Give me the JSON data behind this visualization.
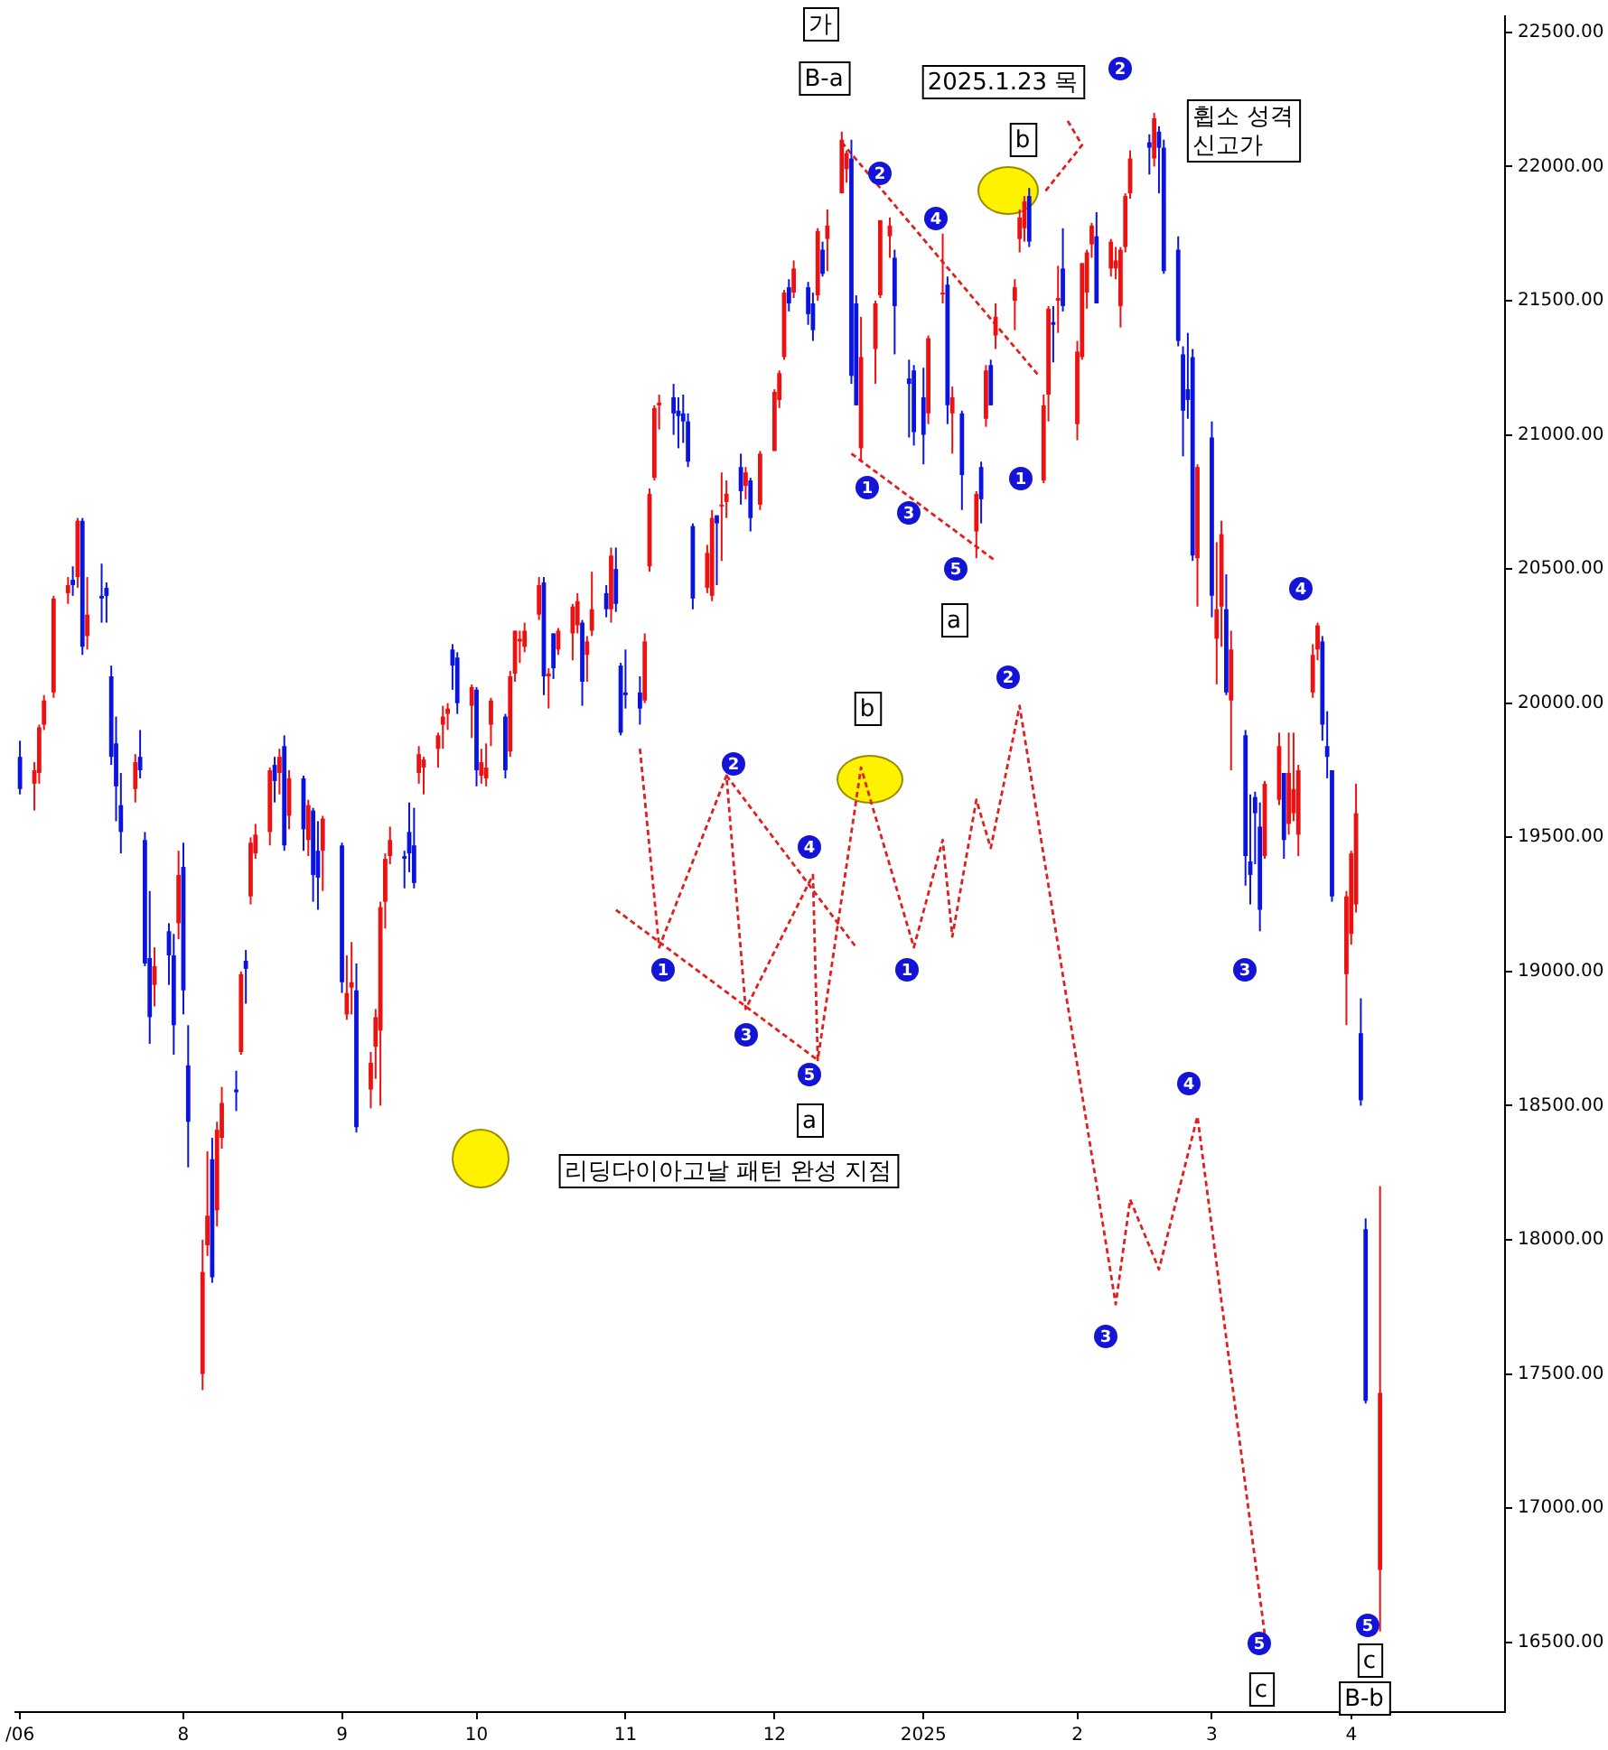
{
  "chart_data": {
    "type": "candlestick",
    "x": [
      "2024-06-28",
      "2024-07-01",
      "2024-07-02",
      "2024-07-03",
      "2024-07-05",
      "2024-07-08",
      "2024-07-09",
      "2024-07-10",
      "2024-07-11",
      "2024-07-12",
      "2024-07-15",
      "2024-07-16",
      "2024-07-17",
      "2024-07-18",
      "2024-07-19",
      "2024-07-22",
      "2024-07-23",
      "2024-07-24",
      "2024-07-25",
      "2024-07-26",
      "2024-07-29",
      "2024-07-30",
      "2024-07-31",
      "2024-08-01",
      "2024-08-02",
      "2024-08-05",
      "2024-08-06",
      "2024-08-07",
      "2024-08-08",
      "2024-08-09",
      "2024-08-12",
      "2024-08-13",
      "2024-08-14",
      "2024-08-15",
      "2024-08-16",
      "2024-08-19",
      "2024-08-20",
      "2024-08-21",
      "2024-08-22",
      "2024-08-23",
      "2024-08-26",
      "2024-08-27",
      "2024-08-28",
      "2024-08-29",
      "2024-08-30",
      "2024-09-03",
      "2024-09-04",
      "2024-09-05",
      "2024-09-06",
      "2024-09-09",
      "2024-09-10",
      "2024-09-11",
      "2024-09-12",
      "2024-09-13",
      "2024-09-16",
      "2024-09-17",
      "2024-09-18",
      "2024-09-19",
      "2024-09-20",
      "2024-09-23",
      "2024-09-24",
      "2024-09-25",
      "2024-09-26",
      "2024-09-27",
      "2024-09-30",
      "2024-10-01",
      "2024-10-02",
      "2024-10-03",
      "2024-10-04",
      "2024-10-07",
      "2024-10-08",
      "2024-10-09",
      "2024-10-10",
      "2024-10-11",
      "2024-10-14",
      "2024-10-15",
      "2024-10-16",
      "2024-10-17",
      "2024-10-18",
      "2024-10-21",
      "2024-10-22",
      "2024-10-23",
      "2024-10-24",
      "2024-10-25",
      "2024-10-28",
      "2024-10-29",
      "2024-10-30",
      "2024-10-31",
      "2024-11-01",
      "2024-11-04",
      "2024-11-05",
      "2024-11-06",
      "2024-11-07",
      "2024-11-08",
      "2024-11-11",
      "2024-11-12",
      "2024-11-13",
      "2024-11-14",
      "2024-11-15",
      "2024-11-18",
      "2024-11-19",
      "2024-11-20",
      "2024-11-21",
      "2024-11-22",
      "2024-11-25",
      "2024-11-26",
      "2024-11-27",
      "2024-11-29",
      "2024-12-02",
      "2024-12-03",
      "2024-12-04",
      "2024-12-05",
      "2024-12-06",
      "2024-12-09",
      "2024-12-10",
      "2024-12-11",
      "2024-12-12",
      "2024-12-13",
      "2024-12-16",
      "2024-12-17",
      "2024-12-18",
      "2024-12-19",
      "2024-12-20",
      "2024-12-23",
      "2024-12-24",
      "2024-12-26",
      "2024-12-27",
      "2024-12-30",
      "2024-12-31",
      "2025-01-02",
      "2025-01-03",
      "2025-01-06",
      "2025-01-07",
      "2025-01-08",
      "2025-01-10",
      "2025-01-13",
      "2025-01-14",
      "2025-01-15",
      "2025-01-16",
      "2025-01-17",
      "2025-01-21",
      "2025-01-22",
      "2025-01-23",
      "2025-01-24",
      "2025-01-27",
      "2025-01-28",
      "2025-01-29",
      "2025-01-30",
      "2025-01-31",
      "2025-02-03",
      "2025-02-04",
      "2025-02-05",
      "2025-02-06",
      "2025-02-07",
      "2025-02-10",
      "2025-02-11",
      "2025-02-12",
      "2025-02-13",
      "2025-02-14",
      "2025-02-18",
      "2025-02-19",
      "2025-02-20",
      "2025-02-21",
      "2025-02-24",
      "2025-02-25",
      "2025-02-26",
      "2025-02-27",
      "2025-02-28",
      "2025-03-03",
      "2025-03-04",
      "2025-03-05",
      "2025-03-06",
      "2025-03-07",
      "2025-03-10",
      "2025-03-11",
      "2025-03-12",
      "2025-03-13",
      "2025-03-14",
      "2025-03-17",
      "2025-03-18",
      "2025-03-19",
      "2025-03-20",
      "2025-03-21",
      "2025-03-24",
      "2025-03-25",
      "2025-03-26",
      "2025-03-27",
      "2025-03-28",
      "2025-03-31",
      "2025-04-01",
      "2025-04-02",
      "2025-04-03",
      "2025-04-04",
      "2025-04-07"
    ],
    "ohlc": [
      [
        19800,
        19860,
        19660,
        19680
      ],
      [
        19700,
        19780,
        19600,
        19750
      ],
      [
        19740,
        19920,
        19700,
        19910
      ],
      [
        19920,
        20030,
        19900,
        20010
      ],
      [
        20040,
        20400,
        20020,
        20390
      ],
      [
        20410,
        20470,
        20370,
        20440
      ],
      [
        20460,
        20510,
        20400,
        20440
      ],
      [
        20470,
        20690,
        20430,
        20680
      ],
      [
        20680,
        20690,
        20180,
        20210
      ],
      [
        20250,
        20470,
        20200,
        20330
      ],
      [
        20400,
        20520,
        20300,
        20390
      ],
      [
        20430,
        20450,
        20300,
        20400
      ],
      [
        20100,
        20140,
        19770,
        19800
      ],
      [
        19850,
        19950,
        19560,
        19690
      ],
      [
        19620,
        19740,
        19440,
        19520
      ],
      [
        19680,
        19810,
        19630,
        19780
      ],
      [
        19800,
        19900,
        19720,
        19750
      ],
      [
        19490,
        19520,
        19020,
        19030
      ],
      [
        19050,
        19300,
        18730,
        18830
      ],
      [
        18950,
        19090,
        18870,
        19020
      ],
      [
        19150,
        19180,
        18950,
        19060
      ],
      [
        19060,
        19140,
        18690,
        18800
      ],
      [
        19180,
        19450,
        19120,
        19360
      ],
      [
        19390,
        19480,
        18840,
        18930
      ],
      [
        18650,
        18800,
        18270,
        18440
      ],
      [
        17500,
        18000,
        17440,
        17880
      ],
      [
        17980,
        18330,
        17940,
        18090
      ],
      [
        18300,
        18380,
        17840,
        17860
      ],
      [
        18110,
        18440,
        18050,
        18410
      ],
      [
        18380,
        18570,
        18340,
        18510
      ],
      [
        18560,
        18630,
        18480,
        18550
      ],
      [
        18700,
        19000,
        18690,
        18990
      ],
      [
        19040,
        19080,
        18880,
        19010
      ],
      [
        19280,
        19500,
        19250,
        19480
      ],
      [
        19440,
        19550,
        19420,
        19510
      ],
      [
        19520,
        19760,
        19470,
        19750
      ],
      [
        19770,
        19800,
        19630,
        19710
      ],
      [
        19740,
        19830,
        19660,
        19800
      ],
      [
        19840,
        19880,
        19450,
        19470
      ],
      [
        19580,
        19750,
        19530,
        19720
      ],
      [
        19720,
        19730,
        19450,
        19530
      ],
      [
        19490,
        19640,
        19430,
        19620
      ],
      [
        19600,
        19610,
        19260,
        19360
      ],
      [
        19450,
        19560,
        19230,
        19350
      ],
      [
        19450,
        19580,
        19300,
        19570
      ],
      [
        19470,
        19480,
        18920,
        18960
      ],
      [
        18840,
        19060,
        18820,
        18920
      ],
      [
        18940,
        19110,
        18840,
        18960
      ],
      [
        18930,
        19030,
        18400,
        18420
      ],
      [
        18560,
        18700,
        18490,
        18660
      ],
      [
        18720,
        18860,
        18600,
        18830
      ],
      [
        18780,
        19260,
        18500,
        19240
      ],
      [
        19260,
        19440,
        19160,
        19420
      ],
      [
        19430,
        19540,
        19400,
        19490
      ],
      [
        19430,
        19450,
        19310,
        19420
      ],
      [
        19520,
        19630,
        19370,
        19440
      ],
      [
        19470,
        19610,
        19310,
        19330
      ],
      [
        19740,
        19840,
        19700,
        19810
      ],
      [
        19760,
        19800,
        19660,
        19790
      ],
      [
        19830,
        19890,
        19760,
        19880
      ],
      [
        19920,
        19990,
        19830,
        19950
      ],
      [
        19960,
        20000,
        19900,
        19980
      ],
      [
        20200,
        20220,
        20050,
        20140
      ],
      [
        20170,
        20190,
        19960,
        20000
      ],
      [
        19990,
        20070,
        19870,
        20060
      ],
      [
        20050,
        20060,
        19690,
        19750
      ],
      [
        19730,
        19830,
        19700,
        19780
      ],
      [
        19720,
        19850,
        19690,
        19760
      ],
      [
        19920,
        20020,
        19840,
        20010
      ],
      [
        19950,
        19960,
        19720,
        19750
      ],
      [
        19820,
        20120,
        19800,
        20100
      ],
      [
        20110,
        20270,
        20080,
        20270
      ],
      [
        20230,
        20270,
        20150,
        20240
      ],
      [
        20210,
        20300,
        20190,
        20270
      ],
      [
        20330,
        20470,
        20310,
        20440
      ],
      [
        20450,
        20470,
        20030,
        20100
      ],
      [
        20100,
        20130,
        19980,
        20110
      ],
      [
        20260,
        20260,
        20090,
        20130
      ],
      [
        20200,
        20280,
        20180,
        20270
      ],
      [
        20260,
        20370,
        20160,
        20360
      ],
      [
        20290,
        20410,
        20260,
        20380
      ],
      [
        20300,
        20310,
        19990,
        20080
      ],
      [
        20180,
        20250,
        20080,
        20230
      ],
      [
        20270,
        20490,
        20250,
        20350
      ],
      [
        20410,
        20440,
        20320,
        20350
      ],
      [
        20350,
        20580,
        20300,
        20550
      ],
      [
        20500,
        20580,
        20340,
        20370
      ],
      [
        20140,
        20150,
        19880,
        19890
      ],
      [
        20040,
        20200,
        19980,
        20030
      ],
      [
        20040,
        20100,
        19920,
        19980
      ],
      [
        20010,
        20260,
        20000,
        20230
      ],
      [
        20510,
        20800,
        20490,
        20780
      ],
      [
        20840,
        21110,
        20830,
        21100
      ],
      [
        21110,
        21150,
        21020,
        21120
      ],
      [
        21140,
        21190,
        21000,
        21080
      ],
      [
        21090,
        21140,
        20950,
        21070
      ],
      [
        21080,
        21150,
        20970,
        21050
      ],
      [
        21050,
        21080,
        20880,
        20900
      ],
      [
        20660,
        20670,
        20350,
        20390
      ],
      [
        20430,
        20590,
        20410,
        20560
      ],
      [
        20400,
        20720,
        20380,
        20690
      ],
      [
        20700,
        20700,
        20440,
        20670
      ],
      [
        20740,
        20860,
        20530,
        20740
      ],
      [
        20750,
        20830,
        20690,
        20780
      ],
      [
        20880,
        20930,
        20740,
        20790
      ],
      [
        20810,
        20880,
        20760,
        20860
      ],
      [
        20830,
        20840,
        20640,
        20690
      ],
      [
        20740,
        20940,
        20720,
        20930
      ],
      [
        20940,
        21170,
        20940,
        21160
      ],
      [
        21130,
        21240,
        21100,
        21230
      ],
      [
        21290,
        21540,
        21280,
        21530
      ],
      [
        21550,
        21580,
        21460,
        21490
      ],
      [
        21530,
        21650,
        21510,
        21620
      ],
      [
        21550,
        21570,
        21410,
        21450
      ],
      [
        21490,
        21530,
        21350,
        21390
      ],
      [
        21520,
        21770,
        21500,
        21760
      ],
      [
        21690,
        21720,
        21590,
        21600
      ],
      [
        21730,
        21840,
        21610,
        21780
      ],
      [
        21900,
        22130,
        21900,
        22100
      ],
      [
        21990,
        22060,
        21940,
        22050
      ],
      [
        22030,
        22100,
        21190,
        21220
      ],
      [
        21490,
        21520,
        21110,
        21110
      ],
      [
        20950,
        21440,
        20900,
        21290
      ],
      [
        21320,
        21500,
        21190,
        21490
      ],
      [
        21520,
        21800,
        21510,
        21800
      ],
      [
        21740,
        21810,
        21660,
        21780
      ],
      [
        21660,
        21690,
        21300,
        21480
      ],
      [
        21210,
        21280,
        20990,
        21190
      ],
      [
        21240,
        21260,
        20960,
        21010
      ],
      [
        21140,
        21250,
        20890,
        21000
      ],
      [
        21080,
        21370,
        21040,
        21360
      ],
      [
        21530,
        21750,
        21490,
        21530
      ],
      [
        21560,
        21590,
        21040,
        21110
      ],
      [
        21080,
        21180,
        20930,
        21140
      ],
      [
        21080,
        21090,
        20720,
        20850
      ],
      [
        20640,
        20790,
        20540,
        20780
      ],
      [
        20880,
        20900,
        20670,
        20760
      ],
      [
        21060,
        21260,
        21030,
        21240
      ],
      [
        21260,
        21280,
        21110,
        21110
      ],
      [
        21370,
        21490,
        21320,
        21440
      ],
      [
        21500,
        21580,
        21390,
        21550
      ],
      [
        21730,
        21840,
        21680,
        21810
      ],
      [
        21770,
        21890,
        21720,
        21870
      ],
      [
        21890,
        21920,
        21700,
        21720
      ],
      [
        20830,
        21150,
        20820,
        21110
      ],
      [
        21150,
        21480,
        21050,
        21470
      ],
      [
        21420,
        21480,
        21270,
        21410
      ],
      [
        21500,
        21630,
        21380,
        21510
      ],
      [
        21620,
        21770,
        21460,
        21480
      ],
      [
        21040,
        21350,
        20980,
        21310
      ],
      [
        21290,
        21640,
        21280,
        21640
      ],
      [
        21530,
        21690,
        21470,
        21680
      ],
      [
        21710,
        21790,
        21660,
        21780
      ],
      [
        21740,
        21830,
        21490,
        21490
      ],
      [
        21620,
        21730,
        21590,
        21720
      ],
      [
        21620,
        21700,
        21580,
        21650
      ],
      [
        21480,
        21700,
        21400,
        21690
      ],
      [
        21700,
        21900,
        21680,
        21890
      ],
      [
        21900,
        22060,
        21880,
        22030
      ],
      [
        22090,
        22120,
        21970,
        22070
      ],
      [
        22030,
        22200,
        22000,
        22180
      ],
      [
        22130,
        22150,
        21900,
        22070
      ],
      [
        22070,
        22100,
        21600,
        21610
      ],
      [
        21690,
        21740,
        21330,
        21350
      ],
      [
        21300,
        21330,
        20920,
        21090
      ],
      [
        21170,
        21380,
        21060,
        21130
      ],
      [
        21290,
        21320,
        20530,
        20550
      ],
      [
        20540,
        20890,
        20360,
        20880
      ],
      [
        20990,
        21050,
        20320,
        20400
      ],
      [
        20240,
        20600,
        20070,
        20350
      ],
      [
        20360,
        20680,
        20210,
        20630
      ],
      [
        20350,
        20480,
        20030,
        20040
      ],
      [
        20010,
        20270,
        19750,
        20200
      ],
      [
        19880,
        19900,
        19320,
        19430
      ],
      [
        19410,
        19660,
        19250,
        19360
      ],
      [
        19650,
        19670,
        19400,
        19590
      ],
      [
        19540,
        19630,
        19150,
        19230
      ],
      [
        19430,
        19710,
        19420,
        19700
      ],
      [
        19640,
        19890,
        19620,
        19840
      ],
      [
        19740,
        19740,
        19420,
        19490
      ],
      [
        19550,
        19890,
        19510,
        19740
      ],
      [
        19590,
        19890,
        19560,
        19680
      ],
      [
        19510,
        19770,
        19430,
        19750
      ],
      [
        20040,
        20220,
        20020,
        20180
      ],
      [
        20200,
        20300,
        20160,
        20290
      ],
      [
        20230,
        20250,
        19860,
        19920
      ],
      [
        19840,
        19970,
        19720,
        19800
      ],
      [
        19750,
        19750,
        19260,
        19280
      ],
      [
        18990,
        19300,
        18800,
        19280
      ],
      [
        19140,
        19450,
        19100,
        19440
      ],
      [
        19250,
        19700,
        19220,
        19590
      ],
      [
        18770,
        18900,
        18500,
        18520
      ],
      [
        18040,
        18080,
        17390,
        17400
      ],
      [
        16770,
        18200,
        16540,
        17430
      ]
    ],
    "xlim": [
      "2024-06-27",
      "2025-05-03"
    ],
    "xticks": [
      {
        "value": "2024-06-28",
        "label": "/06"
      },
      {
        "value": "2024-08-01",
        "label": "8"
      },
      {
        "value": "2024-09-03",
        "label": "9"
      },
      {
        "value": "2024-10-01",
        "label": "10"
      },
      {
        "value": "2024-11-01",
        "label": "11"
      },
      {
        "value": "2024-12-02",
        "label": "12"
      },
      {
        "value": "2025-01-02",
        "label": "2025"
      },
      {
        "value": "2025-02-03",
        "label": "2"
      },
      {
        "value": "2025-03-03",
        "label": "3"
      },
      {
        "value": "2025-04-01",
        "label": "4"
      }
    ],
    "ylim": [
      16240,
      22560
    ],
    "yticks": [
      {
        "value": 16500,
        "label": "16500.00"
      },
      {
        "value": 17000,
        "label": "17000.00"
      },
      {
        "value": 17500,
        "label": "17500.00"
      },
      {
        "value": 18000,
        "label": "18000.00"
      },
      {
        "value": 18500,
        "label": "18500.00"
      },
      {
        "value": 19000,
        "label": "19000.00"
      },
      {
        "value": 19500,
        "label": "19500.00"
      },
      {
        "value": 20000,
        "label": "20000.00"
      },
      {
        "value": 20500,
        "label": "20500.00"
      },
      {
        "value": 21000,
        "label": "21000.00"
      },
      {
        "value": 21500,
        "label": "21500.00"
      },
      {
        "value": 22000,
        "label": "22000.00"
      },
      {
        "value": 22500,
        "label": "22500.00"
      }
    ],
    "marker": "none",
    "series": [
      {
        "type": "line",
        "color": "#e02020",
        "line_style": "dashed",
        "x": [
          "2024-11-04",
          "2024-11-08",
          "2024-11-22",
          "2024-11-26",
          "2024-12-10",
          "2024-12-11",
          "2024-12-20",
          "2024-12-31",
          "2025-01-06",
          "2025-01-08",
          "2025-01-13",
          "2025-01-16",
          "2025-01-22",
          "2025-02-11",
          "2025-02-14",
          "2025-02-20",
          "2025-02-28",
          "2025-03-14"
        ],
        "values": [
          19830,
          19090,
          19730,
          18860,
          19360,
          18670,
          19760,
          19090,
          19490,
          19130,
          19640,
          19460,
          19990,
          17760,
          18150,
          17890,
          18460,
          16530
        ]
      },
      {
        "type": "line",
        "color": "#e02020",
        "line_style": "dashed",
        "x": [
          "2024-10-30",
          "2024-12-11"
        ],
        "values": [
          19230,
          18670
        ]
      },
      {
        "type": "line",
        "color": "#e02020",
        "line_style": "dashed",
        "x": [
          "2024-11-22",
          "2024-12-19"
        ],
        "values": [
          19730,
          19090
        ]
      },
      {
        "type": "line",
        "color": "#e02020",
        "line_style": "dashed",
        "x": [
          "2024-12-16",
          "2025-01-26"
        ],
        "values": [
          22090,
          21220
        ]
      },
      {
        "type": "line",
        "color": "#e02020",
        "line_style": "dashed",
        "x": [
          "2024-12-18",
          "2025-01-17"
        ],
        "values": [
          20930,
          20530
        ]
      },
      {
        "type": "line",
        "color": "#e02020",
        "line_style": "dashed",
        "x": [
          "2025-02-01",
          "2025-02-04",
          "2025-01-27"
        ],
        "values": [
          22170,
          22080,
          21900
        ]
      }
    ],
    "annotations": [
      "가",
      "B-a",
      "2025.1.23 목",
      "b",
      "휩소 성격\n신고가",
      "2",
      "2",
      "4",
      "1",
      "3",
      "5",
      "1",
      "a",
      "b",
      "2",
      "4",
      "1",
      "3",
      "5",
      "1",
      "a",
      "2",
      "3",
      "4",
      "5",
      "c",
      "3",
      "4",
      "5",
      "c",
      "B-b",
      "리딩다이아고날 패턴 완성 지점"
    ]
  }
}
